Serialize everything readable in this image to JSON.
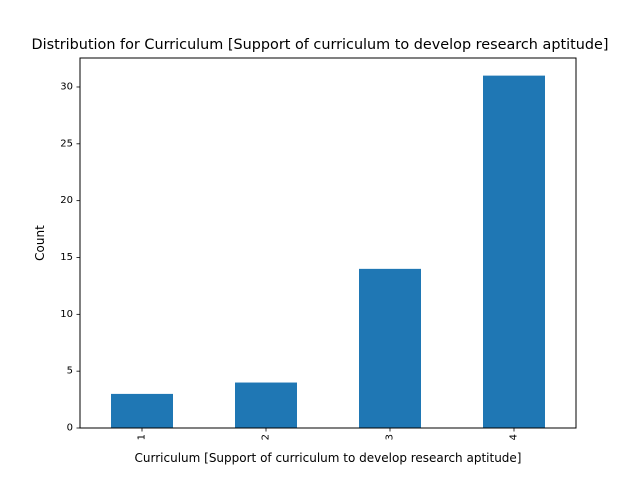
{
  "chart_data": {
    "type": "bar",
    "title": "Distribution for Curriculum [Support of curriculum to develop research aptitude]",
    "xlabel": "Curriculum [Support of curriculum to develop research aptitude]",
    "ylabel": "Count",
    "categories": [
      "1",
      "2",
      "3",
      "4"
    ],
    "values": [
      3,
      4,
      14,
      31
    ],
    "ylim": [
      0,
      32.55
    ],
    "yticks": [
      0,
      5,
      10,
      15,
      20,
      25,
      30
    ],
    "bar_color": "#1f77b4",
    "grid": false,
    "legend": "none"
  }
}
